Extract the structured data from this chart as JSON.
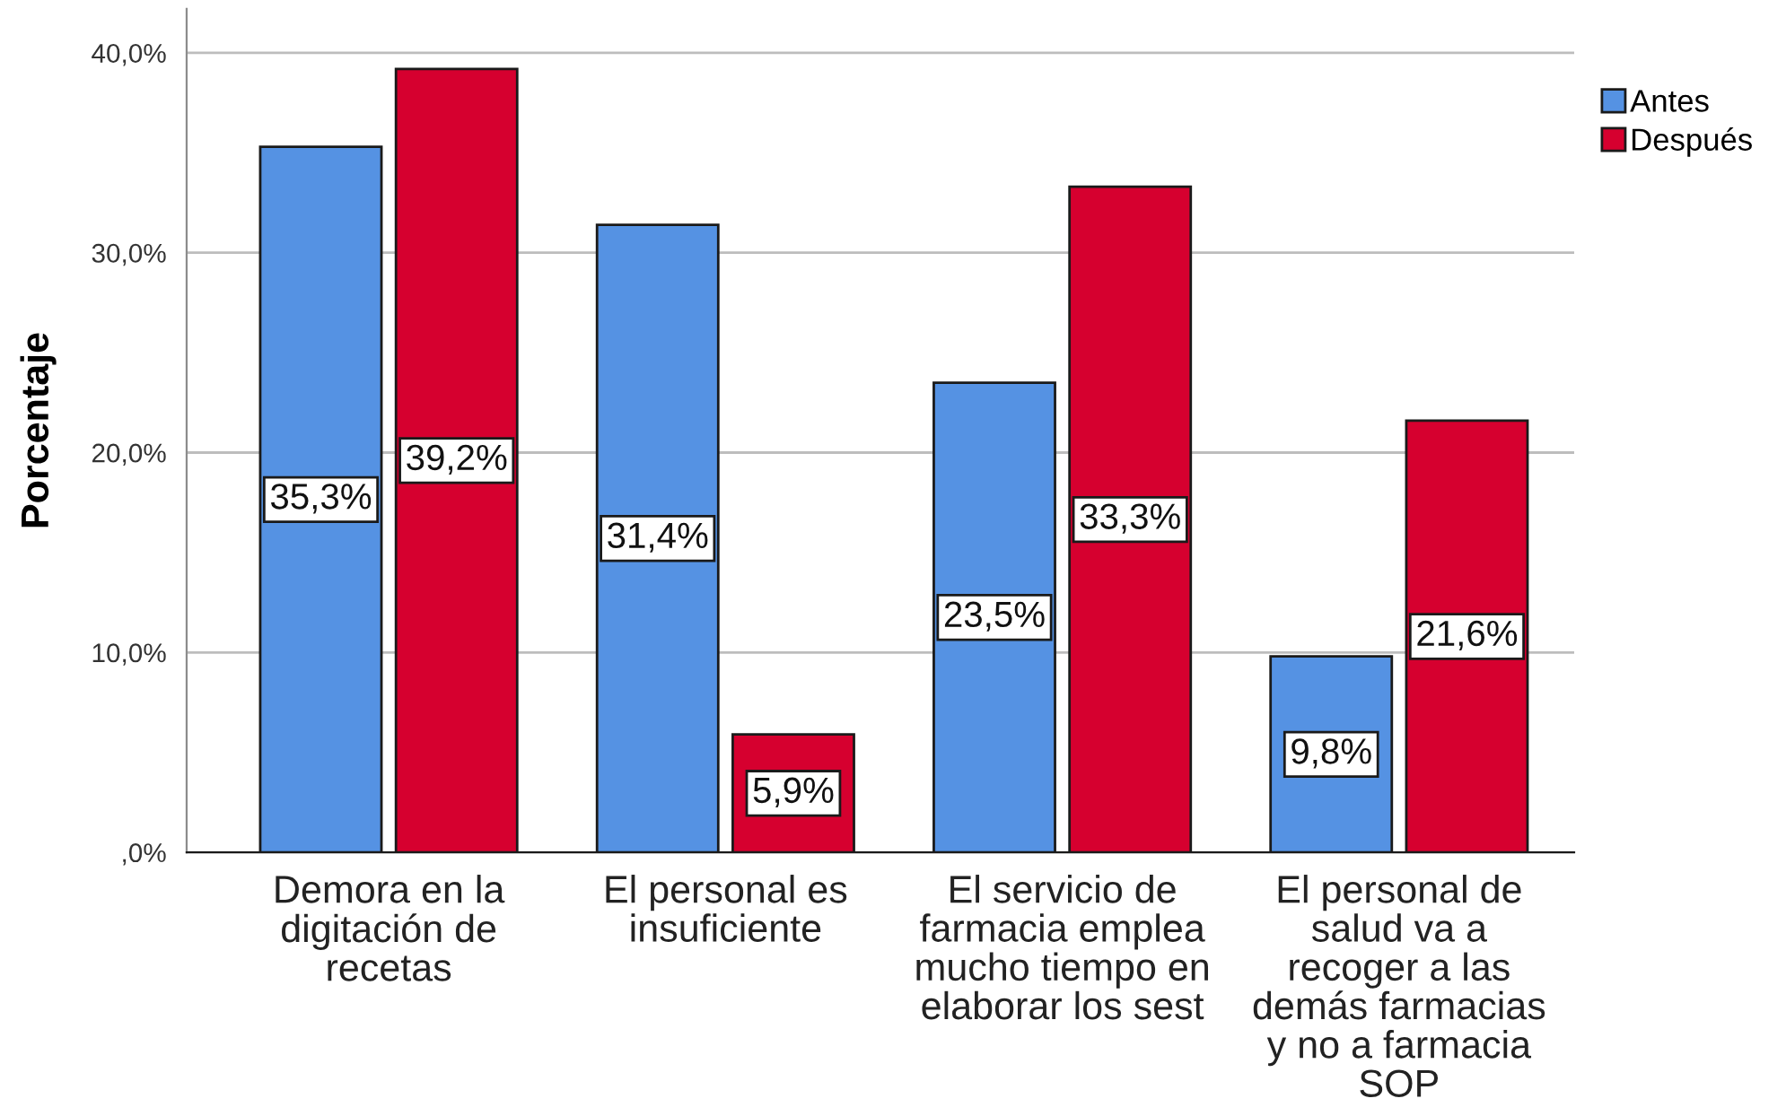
{
  "chart_data": {
    "type": "bar",
    "ylabel": "Porcentaje",
    "categories": [
      "Demora en la\ndigitación de\nrecetas",
      "El personal es\ninsuficiente",
      "El servicio de\nfarmacia emplea\nmucho tiempo en\nelaborar los sest",
      "El personal de\nsalud va a\nrecoger a las\ndemás farmacias\ny no a farmacia\nSOP"
    ],
    "series": [
      {
        "name": "Antes",
        "color": "#5592e3",
        "values": [
          35.3,
          31.4,
          23.5,
          9.8
        ],
        "value_labels": [
          "35,3%",
          "31,4%",
          "23,5%",
          "9,8%"
        ]
      },
      {
        "name": "Después",
        "color": "#d6002f",
        "values": [
          39.2,
          5.9,
          33.3,
          21.6
        ],
        "value_labels": [
          "39,2%",
          "5,9%",
          "33,3%",
          "21,6%"
        ]
      }
    ],
    "ylim": [
      0,
      42.2
    ],
    "yticks": [
      {
        "value": 0,
        "label": ",0%"
      },
      {
        "value": 10,
        "label": "10,0%"
      },
      {
        "value": 20,
        "label": "20,0%"
      },
      {
        "value": 30,
        "label": "30,0%"
      },
      {
        "value": 40,
        "label": "40,0%"
      }
    ],
    "grid": "y",
    "legend": "top right"
  }
}
